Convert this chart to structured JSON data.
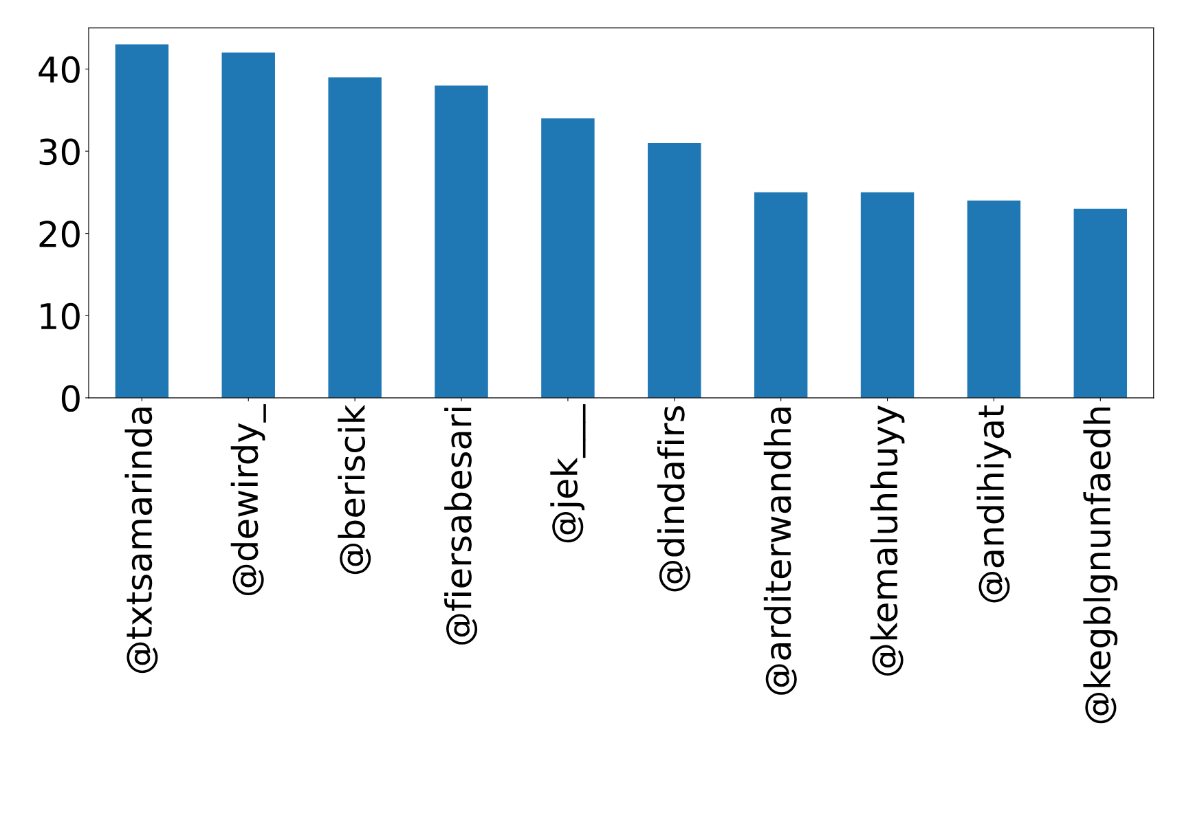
{
  "chart_data": {
    "type": "bar",
    "categories": [
      "@txtsamarinda",
      "@dewirdy_",
      "@beriscik",
      "@fiersabesari",
      "@jek___",
      "@dindafirs",
      "@arditerwandha",
      "@kemaluhhuyy",
      "@andihiyat",
      "@kegblgnunfaedh"
    ],
    "values": [
      43,
      42,
      39,
      38,
      34,
      31,
      25,
      25,
      24,
      23
    ],
    "color": "#1f77b4",
    "ylim": [
      0,
      45
    ],
    "yticks": [
      0,
      10,
      20,
      30,
      40
    ],
    "grid": false,
    "legend": false
  }
}
